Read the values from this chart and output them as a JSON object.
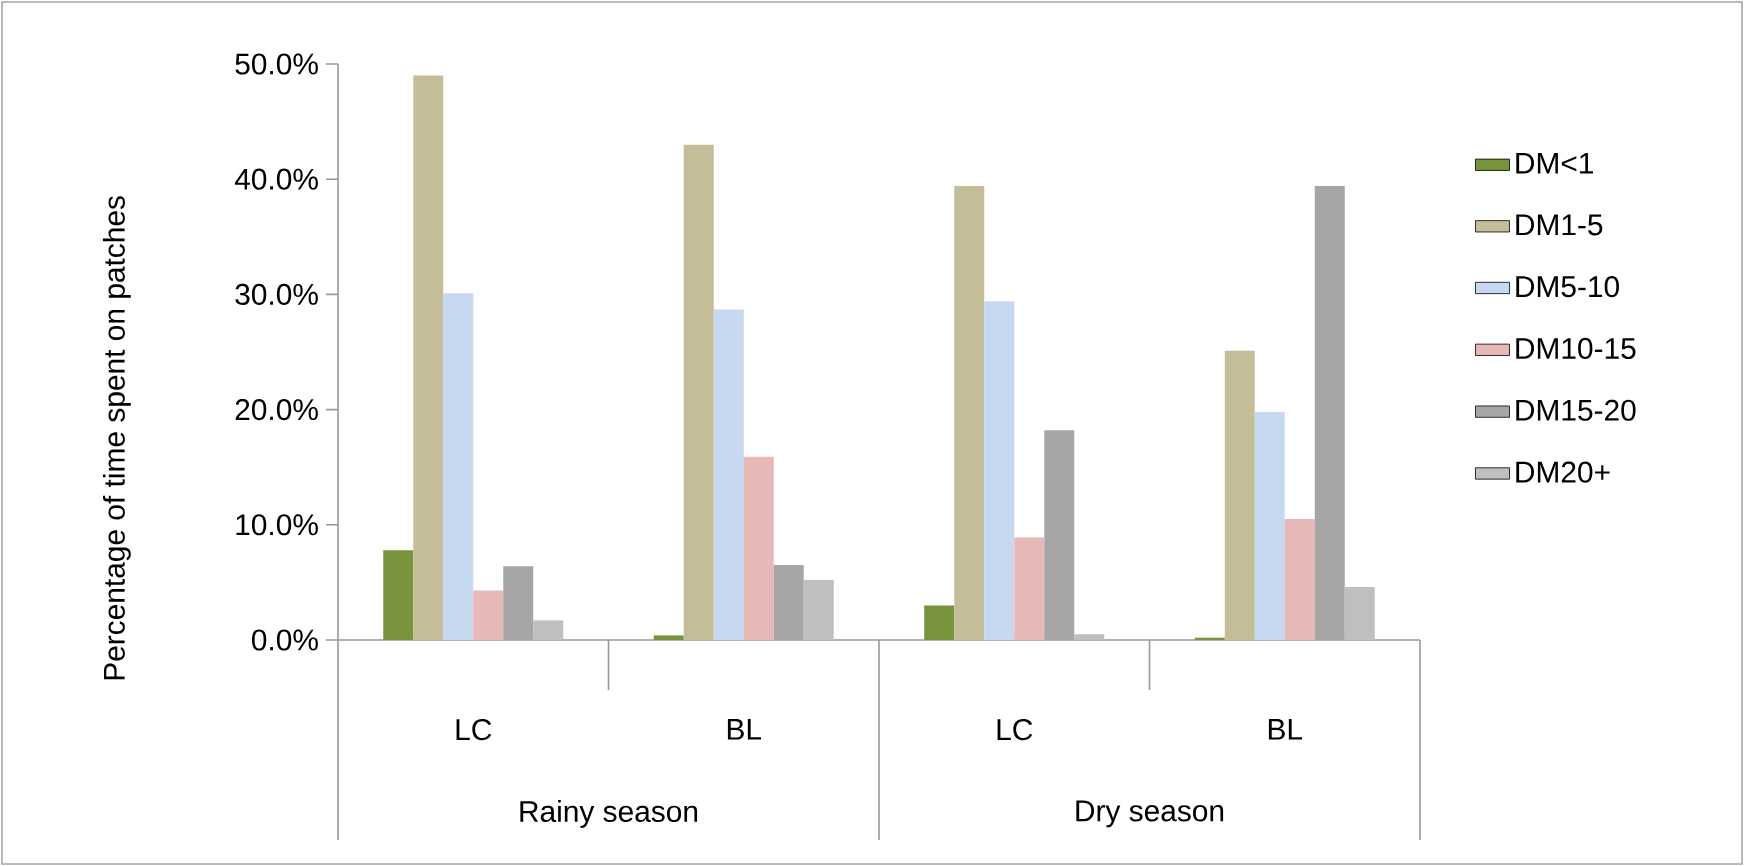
{
  "chart_data": {
    "type": "bar",
    "ylabel": "Percentage of time spent on patches",
    "categories": [
      "LC",
      "BL",
      "LC",
      "BL"
    ],
    "annotations": [
      "Rainy season",
      "Dry season"
    ],
    "series": [
      {
        "name": "DM<1",
        "color": "#77933c",
        "values": [
          7.8,
          0.4,
          3.0,
          0.2
        ]
      },
      {
        "name": "DM1-5",
        "color": "#c4bd97",
        "values": [
          49.0,
          43.0,
          39.4,
          25.1
        ]
      },
      {
        "name": "DM5-10",
        "color": "#c6d9f1",
        "values": [
          30.1,
          28.7,
          29.4,
          19.8
        ]
      },
      {
        "name": "DM10-15",
        "color": "#e6b9b8",
        "values": [
          4.3,
          15.9,
          8.9,
          10.5
        ]
      },
      {
        "name": "DM15-20",
        "color": "#a6a6a6",
        "values": [
          6.4,
          6.5,
          18.2,
          39.4
        ]
      },
      {
        "name": "DM20+",
        "color": "#bfbfbf",
        "values": [
          1.7,
          5.2,
          0.5,
          4.6
        ]
      }
    ],
    "ylim": [
      0,
      50
    ],
    "yticks": [
      {
        "value": 0,
        "label": "0.0%"
      },
      {
        "value": 10,
        "label": "10.0%"
      },
      {
        "value": 20,
        "label": "20.0%"
      },
      {
        "value": 30,
        "label": "30.0%"
      },
      {
        "value": 40,
        "label": "40.0%"
      },
      {
        "value": 50,
        "label": "50.0%"
      }
    ],
    "legend": "right",
    "grid": false
  }
}
